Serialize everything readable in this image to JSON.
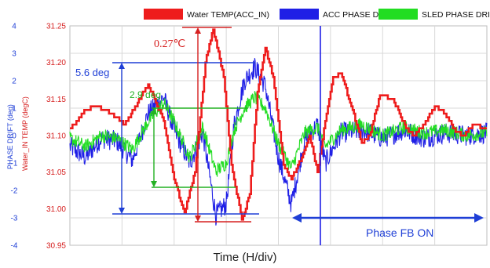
{
  "chart_data": {
    "type": "line",
    "xlabel": "Time (H/div)",
    "ylabel_left": "PHASE DRIFT (deg)",
    "ylabel_right": "Water_IN TEMP (degC)",
    "ylim_left": [
      -4,
      4
    ],
    "ylim_right": [
      30.95,
      31.25
    ],
    "yticks_left": [
      "4",
      "3",
      "2",
      "1",
      "0",
      "-1",
      "-2",
      "-3",
      "-4"
    ],
    "yticks_right": [
      "31.25",
      "31.20",
      "31.15",
      "31.10",
      "31.05",
      "31.00",
      "30.95"
    ],
    "x_divisions": 8,
    "grid": true,
    "legend_position": "top",
    "series": [
      {
        "name": "Water TEMP(ACC_IN)",
        "axis": "right",
        "color": "#ee1c1c",
        "x": [
          0,
          0.15,
          0.3,
          0.5,
          0.8,
          1.05,
          1.3,
          1.5,
          1.8,
          2.0,
          2.2,
          2.4,
          2.6,
          2.75,
          2.95,
          3.1,
          3.3,
          3.45,
          3.6,
          3.75,
          3.9,
          4.1,
          4.25,
          4.45,
          4.6,
          4.75,
          4.9,
          5.05,
          5.2,
          5.4,
          5.6,
          5.75,
          5.95,
          6.2,
          6.45,
          6.6,
          6.8,
          7.0,
          7.2,
          7.4,
          7.55,
          7.75,
          8.0
        ],
        "values": [
          31.11,
          31.12,
          31.135,
          31.14,
          31.13,
          31.115,
          31.145,
          31.17,
          31.12,
          31.04,
          30.995,
          31.05,
          31.2,
          31.245,
          31.18,
          31.06,
          30.985,
          31.02,
          31.16,
          31.22,
          31.18,
          31.06,
          31.04,
          31.07,
          31.1,
          31.05,
          31.12,
          31.18,
          31.185,
          31.14,
          31.09,
          31.1,
          31.155,
          31.15,
          31.11,
          31.1,
          31.115,
          31.14,
          31.13,
          31.105,
          31.1,
          31.115,
          31.11
        ]
      },
      {
        "name": "ACC PHASE DRIFT",
        "axis": "left",
        "color": "#1f1fe6",
        "x": [
          0,
          0.3,
          0.6,
          0.9,
          1.2,
          1.5,
          1.8,
          2.0,
          2.3,
          2.55,
          2.8,
          3.0,
          3.15,
          3.35,
          3.55,
          3.75,
          4.0,
          4.25,
          4.5,
          4.75,
          4.9,
          5.2,
          5.6,
          6.0,
          6.4,
          6.8,
          7.2,
          7.6,
          8.0
        ],
        "values": [
          -0.4,
          -0.8,
          -0.1,
          -0.2,
          -0.9,
          0.8,
          1.4,
          0.2,
          -1.0,
          0.1,
          -2.9,
          -2.5,
          0.4,
          2.0,
          2.5,
          1.8,
          -0.8,
          -2.5,
          -0.2,
          0.4,
          -1.0,
          0.1,
          0.2,
          -0.1,
          0.2,
          -0.1,
          0.1,
          0.0,
          0.1
        ]
      },
      {
        "name": "SLED PHASE DRIFT",
        "axis": "left",
        "color": "#22dd22",
        "x": [
          0,
          0.3,
          0.6,
          0.9,
          1.2,
          1.5,
          1.8,
          2.0,
          2.3,
          2.55,
          2.8,
          3.0,
          3.15,
          3.35,
          3.55,
          3.75,
          4.0,
          4.25,
          4.5,
          4.75,
          4.9,
          5.2,
          5.6,
          6.0,
          6.4,
          6.8,
          7.2,
          7.6,
          8.0
        ],
        "values": [
          -0.1,
          -0.4,
          0.0,
          -0.1,
          -0.5,
          0.5,
          1.2,
          0.5,
          -0.8,
          0.3,
          -1.3,
          -1.0,
          0.2,
          1.0,
          1.4,
          1.0,
          -0.3,
          -1.2,
          0.1,
          0.3,
          -0.4,
          0.2,
          0.4,
          0.0,
          0.3,
          0.1,
          0.2,
          0.0,
          0.1
        ]
      }
    ],
    "annotations": {
      "red_span": "0.27℃",
      "blue_span": "5.6 deg",
      "green_span": "2.9 deg",
      "feedback": "Phase FB ON"
    }
  },
  "colors": {
    "red": "#ee1c1c",
    "blue": "#1f1fe6",
    "green": "#22dd22",
    "axis_blue": "#1f3fd6",
    "axis_red": "#d62020",
    "grid": "#d8d8d8"
  }
}
